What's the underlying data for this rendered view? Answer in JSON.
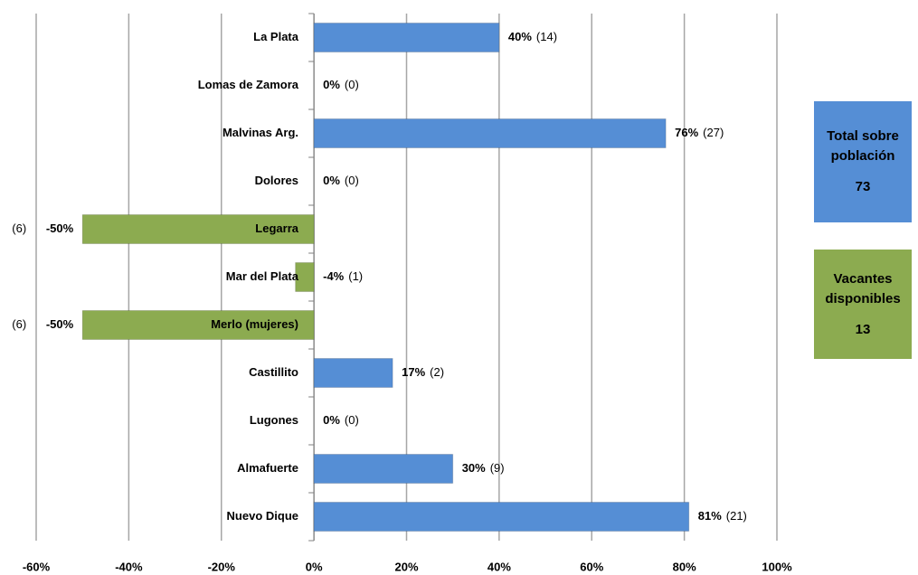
{
  "chart_data": {
    "type": "hbar",
    "categories": [
      "La Plata",
      "Lomas de Zamora",
      "Malvinas Arg.",
      "Dolores",
      "Legarra",
      "Mar del Plata",
      "Merlo (mujeres)",
      "Castillito",
      "Lugones",
      "Almafuerte",
      "Nuevo Dique"
    ],
    "values": [
      40,
      0,
      76,
      0,
      -50,
      -4,
      -50,
      17,
      0,
      30,
      81
    ],
    "value_labels": [
      "40%",
      "0%",
      "76%",
      "0%",
      "-50%",
      "-4%",
      "-50%",
      "17%",
      "0%",
      "30%",
      "81%"
    ],
    "counts": [
      {
        "value": 14,
        "label": "(14)"
      },
      {
        "value": 0,
        "label": "(0)"
      },
      {
        "value": 27,
        "label": "(27)"
      },
      {
        "value": 0,
        "label": "(0)"
      },
      {
        "value": 6,
        "label": "(6)"
      },
      {
        "value": 1,
        "label": "(1)"
      },
      {
        "value": 6,
        "label": "(6)"
      },
      {
        "value": 2,
        "label": "(2)"
      },
      {
        "value": 0,
        "label": "(0)"
      },
      {
        "value": 9,
        "label": "(9)"
      },
      {
        "value": 21,
        "label": "(21)"
      }
    ],
    "positive_color": "#558ed5",
    "negative_color": "#8cab50",
    "xlim": [
      -60,
      100
    ],
    "xticks": [
      {
        "value": -60,
        "label": "-60%"
      },
      {
        "value": -40,
        "label": "-40%"
      },
      {
        "value": -20,
        "label": "-20%"
      },
      {
        "value": 0,
        "label": "0%"
      },
      {
        "value": 20,
        "label": "20%"
      },
      {
        "value": 40,
        "label": "40%"
      },
      {
        "value": 60,
        "label": "60%"
      },
      {
        "value": 80,
        "label": "80%"
      },
      {
        "value": 100,
        "label": "100%"
      }
    ],
    "grid": true
  },
  "summary": [
    {
      "label": "Total sobre población",
      "value": 73,
      "color": "#558ed5"
    },
    {
      "label": "Vacantes disponibles",
      "value": 13,
      "color": "#8cab50"
    }
  ]
}
